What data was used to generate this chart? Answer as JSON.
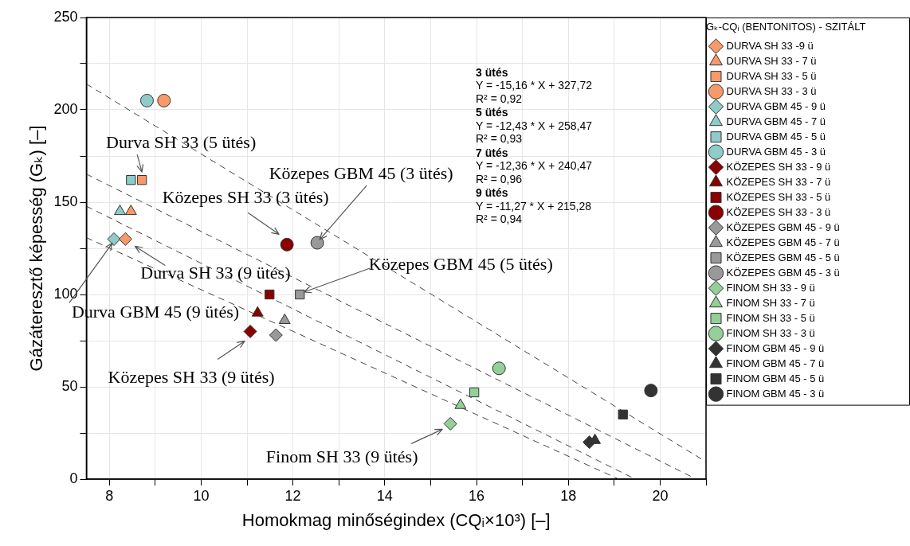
{
  "chart_data": {
    "type": "scatter",
    "xlabel": "Homokmag minőségindex (CQᵢ×10³) [–]",
    "ylabel": "Gázáteresztő képesség (Gₖ) [–]",
    "legend_title": "Gₖ-CQᵢ (BENTONITOS) - SZITÁLT",
    "legend": "right",
    "grid": true,
    "xlim": [
      7.5,
      21
    ],
    "xticks": [
      8,
      {
        "value": 9,
        "label": null
      },
      10,
      {
        "value": 11,
        "label": null
      },
      12,
      {
        "value": 13,
        "label": null
      },
      14,
      {
        "value": 15,
        "label": null
      },
      16,
      {
        "value": 17,
        "label": null
      },
      18,
      {
        "value": 19,
        "label": null
      },
      20,
      {
        "value": 21,
        "label": null
      }
    ],
    "ylim": [
      0,
      250
    ],
    "yticks": [
      0,
      {
        "value": 25,
        "label": null
      },
      50,
      {
        "value": 75,
        "label": null
      },
      100,
      {
        "value": 125,
        "label": null
      },
      150,
      {
        "value": 175,
        "label": null
      },
      200,
      {
        "value": 225,
        "label": null
      },
      250
    ],
    "series": [
      {
        "name": "DURVA SH 33 -9 ü",
        "color": "#f79a6a",
        "marker": "diamond",
        "x": [
          8.35
        ],
        "values": [
          130
        ]
      },
      {
        "name": "DURVA SH 33 - 7 ü",
        "color": "#f79a6a",
        "marker": "triangle",
        "x": [
          8.47
        ],
        "values": [
          145
        ]
      },
      {
        "name": "DURVA SH 33 - 5 ü",
        "color": "#f79a6a",
        "marker": "square",
        "x": [
          8.71
        ],
        "values": [
          162
        ]
      },
      {
        "name": "DURVA SH 33 - 3 ü",
        "color": "#f79a6a",
        "marker": "circle",
        "x": [
          9.19
        ],
        "values": [
          205
        ]
      },
      {
        "name": "DURVA GBM 45 - 9 ü",
        "color": "#8ecbc9",
        "marker": "diamond",
        "x": [
          8.1
        ],
        "values": [
          130
        ]
      },
      {
        "name": "DURVA GBM 45 - 7 ü",
        "color": "#8ecbc9",
        "marker": "triangle",
        "x": [
          8.23
        ],
        "values": [
          145
        ]
      },
      {
        "name": "DURVA GBM 45 - 5 ü",
        "color": "#8ecbc9",
        "marker": "square",
        "x": [
          8.47
        ],
        "values": [
          162
        ]
      },
      {
        "name": "DURVA GBM 45 - 3 ü",
        "color": "#8ecbc9",
        "marker": "circle",
        "x": [
          8.82
        ],
        "values": [
          205
        ]
      },
      {
        "name": "KÖZEPES SH 33 - 9 ü",
        "color": "#8b0000",
        "marker": "diamond",
        "x": [
          11.07
        ],
        "values": [
          80
        ]
      },
      {
        "name": "KÖZEPES SH 33 - 7 ü",
        "color": "#8b0000",
        "marker": "triangle",
        "x": [
          11.23
        ],
        "values": [
          90
        ]
      },
      {
        "name": "KÖZEPES SH 33 - 5 ü",
        "color": "#8b0000",
        "marker": "square",
        "x": [
          11.49
        ],
        "values": [
          100
        ]
      },
      {
        "name": "KÖZEPES SH 33 - 3 ü",
        "color": "#8b0000",
        "marker": "circle",
        "x": [
          11.87
        ],
        "values": [
          127
        ]
      },
      {
        "name": "KÖZEPES GBM 45 - 9 ü",
        "color": "#999999",
        "marker": "diamond",
        "x": [
          11.63
        ],
        "values": [
          78
        ]
      },
      {
        "name": "KÖZEPES GBM 45 - 7 ü",
        "color": "#999999",
        "marker": "triangle",
        "x": [
          11.82
        ],
        "values": [
          86
        ]
      },
      {
        "name": "KÖZEPES GBM 45 - 5 ü",
        "color": "#999999",
        "marker": "square",
        "x": [
          12.15
        ],
        "values": [
          100
        ]
      },
      {
        "name": "KÖZEPES GBM 45 - 3 ü",
        "color": "#999999",
        "marker": "circle",
        "x": [
          12.53
        ],
        "values": [
          128
        ]
      },
      {
        "name": "FINOM SH 33 - 9 ü",
        "color": "#93cf96",
        "marker": "diamond",
        "x": [
          15.43
        ],
        "values": [
          30
        ]
      },
      {
        "name": "FINOM SH 33 - 7 ü",
        "color": "#93cf96",
        "marker": "triangle",
        "x": [
          15.65
        ],
        "values": [
          40
        ]
      },
      {
        "name": "FINOM SH 33 - 5 ü",
        "color": "#93cf96",
        "marker": "square",
        "x": [
          15.95
        ],
        "values": [
          47
        ]
      },
      {
        "name": "FINOM SH 33 - 3 ü",
        "color": "#93cf96",
        "marker": "circle",
        "x": [
          16.49
        ],
        "values": [
          60
        ]
      },
      {
        "name": "FINOM GBM 45 - 9 ü",
        "color": "#333333",
        "marker": "diamond",
        "x": [
          18.46
        ],
        "values": [
          20
        ]
      },
      {
        "name": "FINOM GBM 45 - 7 ü",
        "color": "#333333",
        "marker": "triangle",
        "x": [
          18.58
        ],
        "values": [
          21
        ]
      },
      {
        "name": "FINOM GBM 45 - 5 ü",
        "color": "#333333",
        "marker": "square",
        "x": [
          19.19
        ],
        "values": [
          35
        ]
      },
      {
        "name": "FINOM GBM 45 - 3 ü",
        "color": "#333333",
        "marker": "circle",
        "x": [
          19.8
        ],
        "values": [
          48
        ]
      },
      {
        "type": "line",
        "color": "#444444",
        "marker": "none",
        "line_style": "dashed",
        "x": [
          7.5,
          21
        ],
        "values": [
          214.0,
          9.4
        ]
      },
      {
        "type": "line",
        "color": "#444444",
        "marker": "none",
        "line_style": "dashed",
        "x": [
          7.5,
          20.79
        ],
        "values": [
          165.2,
          0
        ]
      },
      {
        "type": "line",
        "color": "#444444",
        "marker": "none",
        "line_style": "dashed",
        "x": [
          7.5,
          19.46
        ],
        "values": [
          147.8,
          0
        ]
      },
      {
        "type": "line",
        "color": "#444444",
        "marker": "none",
        "line_style": "dashed",
        "x": [
          7.5,
          19.1
        ],
        "values": [
          130.8,
          0
        ]
      }
    ],
    "annotations": [
      {
        "text": "Durva SH 33 (5 ütés)",
        "x": 8.71,
        "y": 162
      },
      {
        "text": "Közepes GBM 45 (3 ütés)",
        "x": 12.53,
        "y": 128
      },
      {
        "text": "Közepes SH 33 (3 ütés)",
        "x": 11.87,
        "y": 127
      },
      {
        "text": "Durva SH 33 (9 ütés)",
        "x": 8.35,
        "y": 130
      },
      {
        "text": "Közepes GBM 45 (5 ütés)",
        "x": 12.15,
        "y": 100
      },
      {
        "text": "Durva GBM 45 (9 ütés)",
        "x": 8.1,
        "y": 130
      },
      {
        "text": "Közepes SH 33 (9 ütés)",
        "x": 11.07,
        "y": 80
      },
      {
        "text": "Finom SH 33 (9 ütés)",
        "x": 15.43,
        "y": 30
      },
      "3 ütés\nY = -15,16 * X + 327,72\nR² = 0,92",
      "5 ütés\nY = -12,43 * X + 258,47\nR² = 0,93",
      "7 ütés\nY = -12,36 * X + 240,47\nR² = 0,96",
      "9 ütés\nY = -11,27 * X + 215,28\nR² = 0,94"
    ]
  }
}
